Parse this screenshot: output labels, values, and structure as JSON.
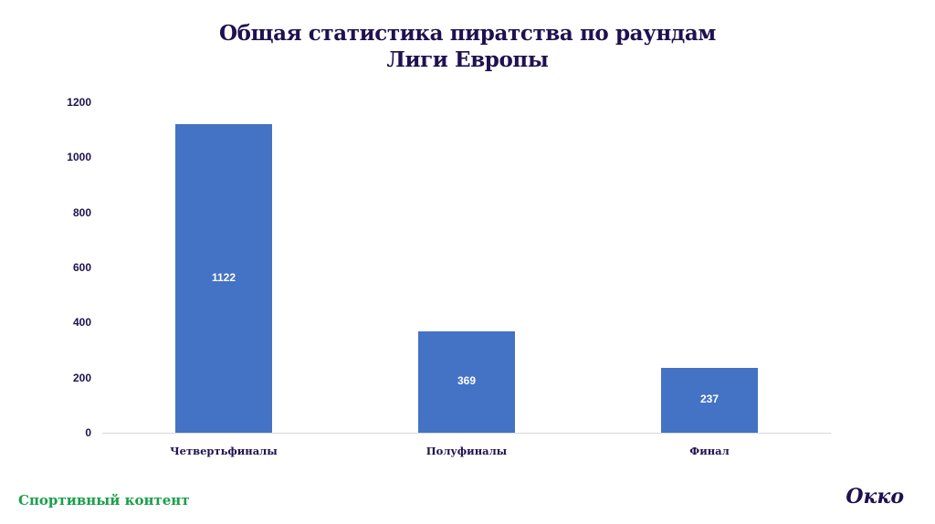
{
  "title": {
    "line1": "Общая статистика пиратства по раундам",
    "line2": "Лиги Европы"
  },
  "footer": {
    "left": "Спортивный контент",
    "right": "Окко"
  },
  "colors": {
    "bar": "#4472c4",
    "title": "#1f1150",
    "footer_left": "#1aa04a"
  },
  "chart_data": {
    "type": "bar",
    "title": "Общая статистика пиратства по раундам Лиги Европы",
    "xlabel": "",
    "ylabel": "",
    "categories": [
      "Четвертьфиналы",
      "Полуфиналы",
      "Финал"
    ],
    "values": [
      1122,
      369,
      237
    ],
    "data_labels": [
      "1122",
      "369",
      "237"
    ],
    "ylim": [
      0,
      1200
    ],
    "yticks": [
      "0",
      "200",
      "400",
      "600",
      "800",
      "1000",
      "1200"
    ],
    "grid": false,
    "legend": null
  }
}
